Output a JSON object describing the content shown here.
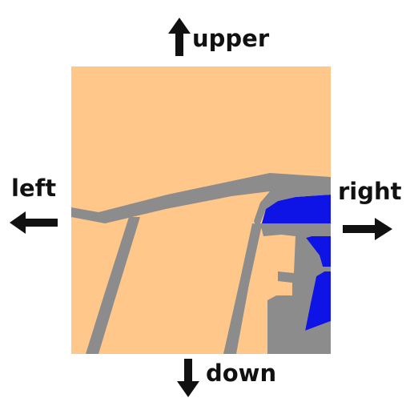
{
  "directions": {
    "upper": "upper",
    "down": "down",
    "left": "left",
    "right": "right"
  },
  "map": {
    "land_color": "#FFC88A",
    "road_color": "#8C8C8C",
    "water_color": "#0F14E6"
  },
  "icons": {
    "upper": "arrow-up-icon",
    "down": "arrow-down-icon",
    "left": "arrow-left-icon",
    "right": "arrow-right-icon"
  },
  "arrow_color": "#111111"
}
